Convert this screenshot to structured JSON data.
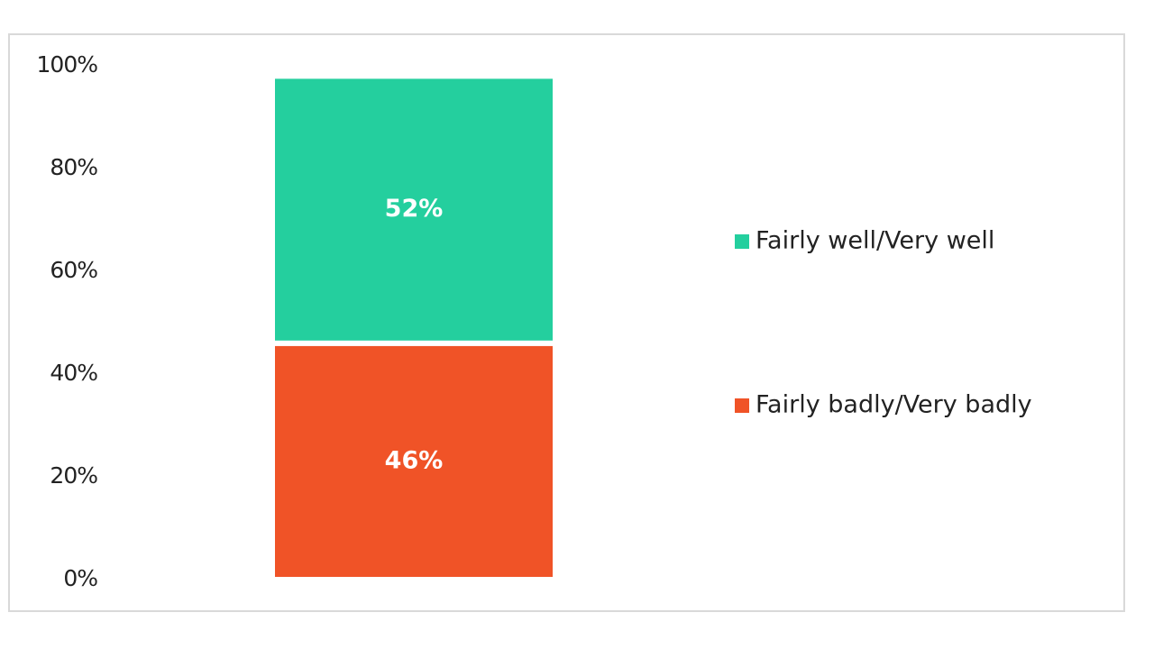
{
  "chart_data": {
    "type": "stacked_bar",
    "categories": [
      null
    ],
    "series": [
      {
        "name": "Fairly badly/Very badly",
        "color": "#F05327",
        "values": [
          46
        ],
        "value_labels": [
          "46%"
        ]
      },
      {
        "name": "Fairly well/Very well",
        "color": "#24CF9E",
        "values": [
          52
        ],
        "value_labels": [
          "52%"
        ]
      }
    ],
    "ylim": [
      0,
      100
    ],
    "yticks": [
      {
        "value": 0,
        "label": "0%"
      },
      {
        "value": 20,
        "label": "20%"
      },
      {
        "value": 40,
        "label": "40%"
      },
      {
        "value": 60,
        "label": "60%"
      },
      {
        "value": 80,
        "label": "80%"
      },
      {
        "value": 100,
        "label": "100%"
      }
    ],
    "legend": "right"
  }
}
